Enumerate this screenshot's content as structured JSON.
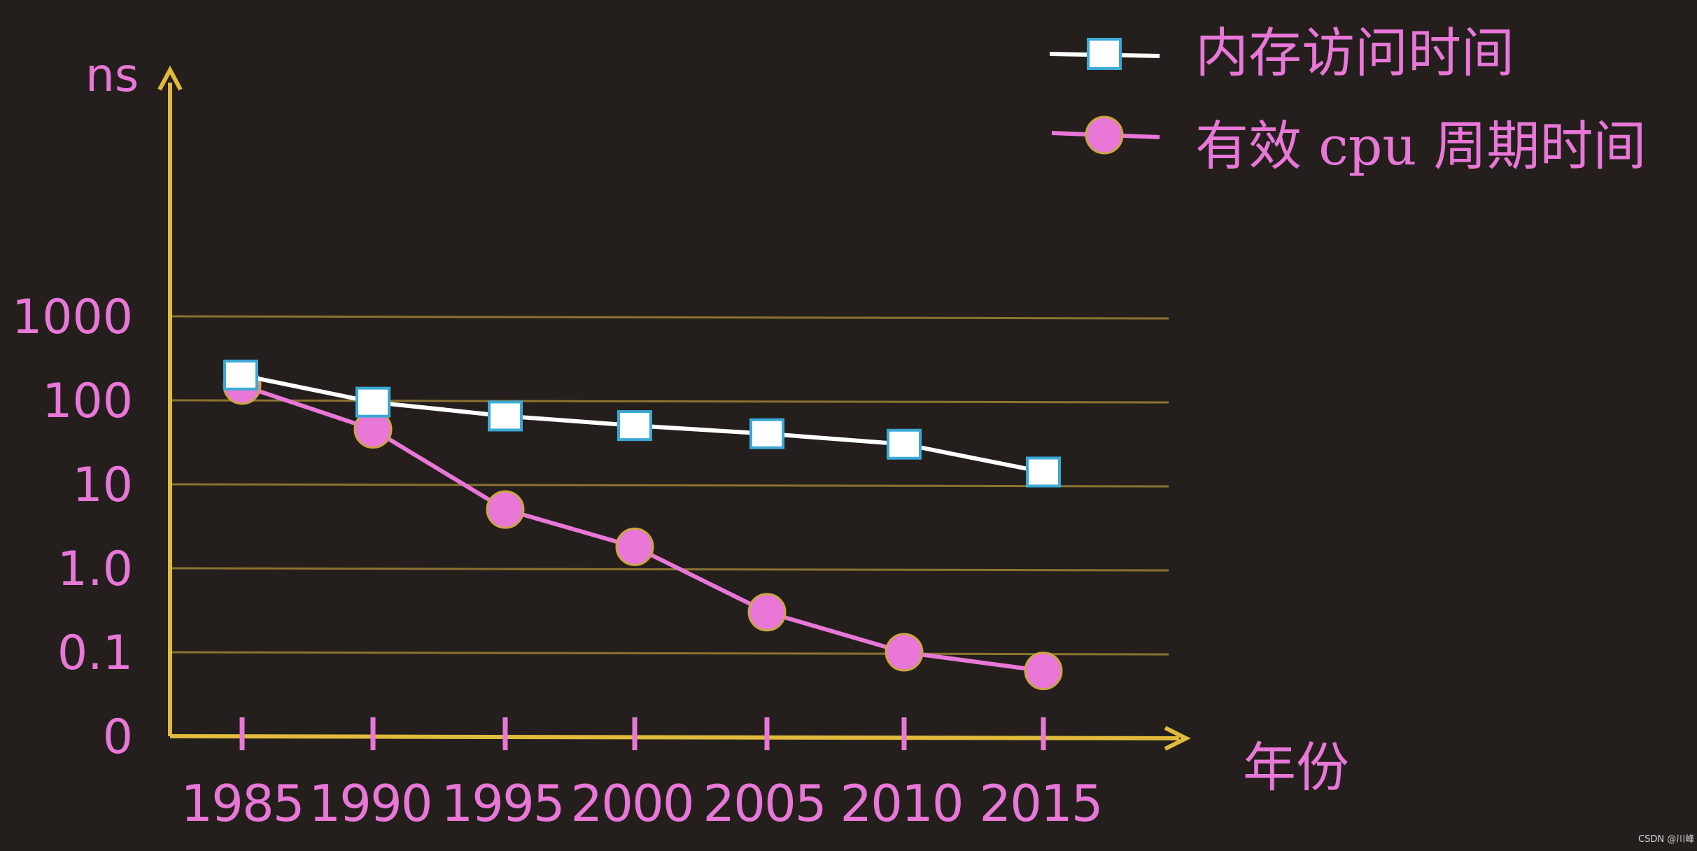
{
  "chart_data": {
    "type": "line",
    "y_scale": "log",
    "ylabel": "ns",
    "xlabel": "年份",
    "categories": [
      "1985",
      "1990",
      "1995",
      "2000",
      "2005",
      "2010",
      "2015"
    ],
    "y_ticks": [
      "1000",
      "100",
      "10",
      "1.0",
      "0.1",
      "0"
    ],
    "grid": true,
    "legend_position": "top-right",
    "series": [
      {
        "name": "内存访问时间",
        "marker": "square",
        "line_color": "#ffffff",
        "marker_fill": "#ffffff",
        "marker_edge": "#3aa9d6",
        "values": [
          200,
          95,
          65,
          50,
          40,
          30,
          14
        ]
      },
      {
        "name": "有效 cpu 周期时间",
        "marker": "circle",
        "line_color": "#e877d8",
        "marker_fill": "#e877d8",
        "marker_edge": "#c9a640",
        "values": [
          150,
          45,
          5,
          1.8,
          0.3,
          0.1,
          0.06
        ]
      }
    ],
    "colors": {
      "axis": "#e1bb3c",
      "grid": "#8a7330",
      "text": "#e877d8",
      "background": "#241f1c"
    }
  },
  "watermark": "CSDN @川峰"
}
